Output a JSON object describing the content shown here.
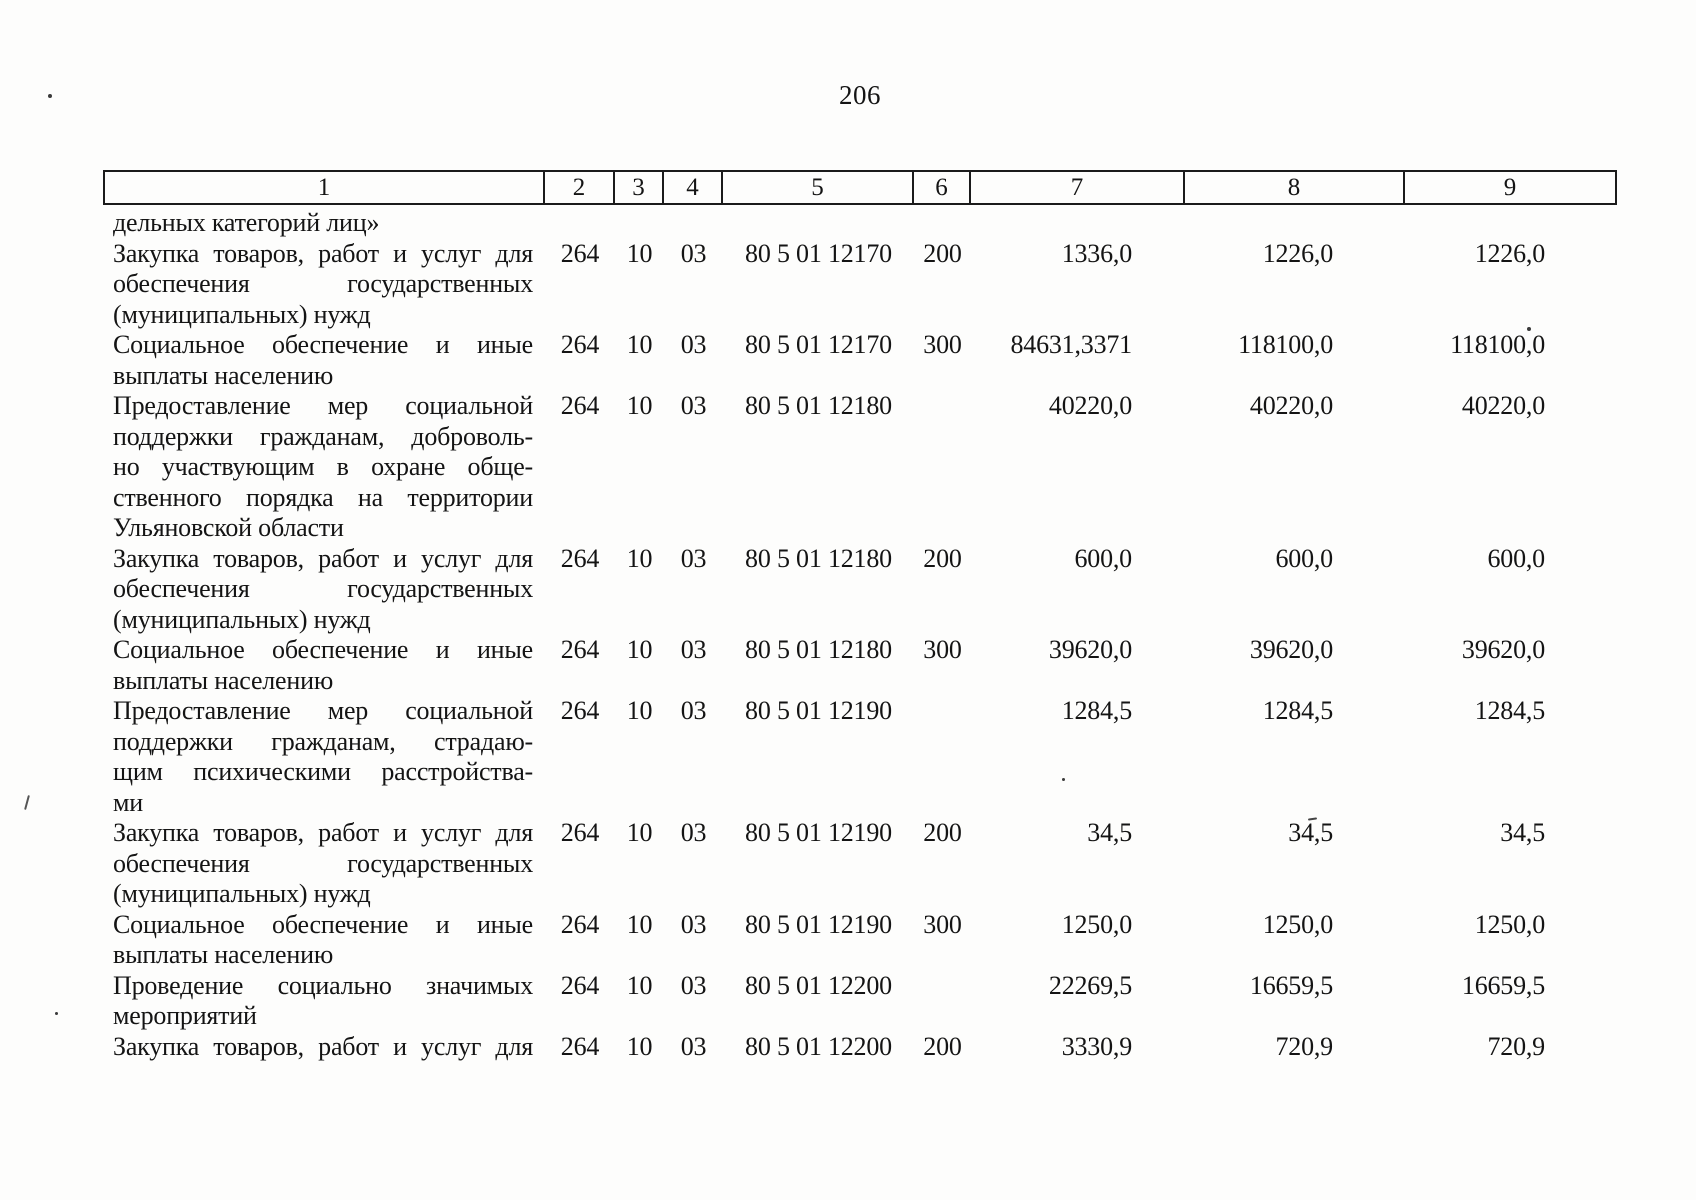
{
  "page": {
    "number": "206"
  },
  "table": {
    "headers": [
      "1",
      "2",
      "3",
      "4",
      "5",
      "6",
      "7",
      "8",
      "9"
    ],
    "rows": [
      {
        "lines": [
          "дельных категорий лиц»"
        ],
        "justify_last": false,
        "cols": [
          "",
          "",
          "",
          "",
          "",
          "",
          "",
          ""
        ]
      },
      {
        "lines": [
          "Закупка товаров, работ и услуг для",
          "обеспечения государственных",
          "(муниципальных) нужд"
        ],
        "justify_last": false,
        "cols": [
          "264",
          "10",
          "03",
          "80 5 01 12170",
          "200",
          "1336,0",
          "1226,0",
          "1226,0"
        ]
      },
      {
        "lines": [
          "Социальное обеспечение и иные",
          "выплаты населению"
        ],
        "justify_last": false,
        "cols": [
          "264",
          "10",
          "03",
          "80 5 01 12170",
          "300",
          "84631,3371",
          "118100,0",
          "118100,0"
        ]
      },
      {
        "lines": [
          "Предоставление мер социальной",
          "поддержки гражданам, доброволь-",
          "но участвующим в охране обще-",
          "ственного порядка на территории",
          "Ульяновской области"
        ],
        "justify_last": false,
        "cols": [
          "264",
          "10",
          "03",
          "80 5 01 12180",
          "",
          "40220,0",
          "40220,0",
          "40220,0"
        ]
      },
      {
        "lines": [
          "Закупка товаров, работ и услуг для",
          "обеспечения государственных",
          "(муниципальных) нужд"
        ],
        "justify_last": false,
        "cols": [
          "264",
          "10",
          "03",
          "80 5 01 12180",
          "200",
          "600,0",
          "600,0",
          "600,0"
        ]
      },
      {
        "lines": [
          "Социальное обеспечение и иные",
          "выплаты населению"
        ],
        "justify_last": false,
        "cols": [
          "264",
          "10",
          "03",
          "80 5 01 12180",
          "300",
          "39620,0",
          "39620,0",
          "39620,0"
        ]
      },
      {
        "lines": [
          "Предоставление мер социальной",
          "поддержки гражданам, страдаю-",
          "щим психическими расстройства-",
          "ми"
        ],
        "justify_last": false,
        "cols": [
          "264",
          "10",
          "03",
          "80 5 01 12190",
          "",
          "1284,5",
          "1284,5",
          "1284,5"
        ]
      },
      {
        "lines": [
          "Закупка товаров, работ и услуг для",
          "обеспечения государственных",
          "(муниципальных) нужд"
        ],
        "justify_last": false,
        "cols": [
          "264",
          "10",
          "03",
          "80 5 01 12190",
          "200",
          "34,5",
          "34,5",
          "34,5"
        ]
      },
      {
        "lines": [
          "Социальное обеспечение и иные",
          "выплаты населению"
        ],
        "justify_last": false,
        "cols": [
          "264",
          "10",
          "03",
          "80 5 01 12190",
          "300",
          "1250,0",
          "1250,0",
          "1250,0"
        ]
      },
      {
        "lines": [
          "Проведение социально значимых",
          "мероприятий"
        ],
        "justify_last": false,
        "cols": [
          "264",
          "10",
          "03",
          "80 5 01 12200",
          "",
          "22269,5",
          "16659,5",
          "16659,5"
        ]
      },
      {
        "lines": [
          "Закупка товаров, работ и услуг для"
        ],
        "justify_last": true,
        "cols": [
          "264",
          "10",
          "03",
          "80 5 01 12200",
          "200",
          "3330,9",
          "720,9",
          "720,9"
        ]
      }
    ]
  }
}
